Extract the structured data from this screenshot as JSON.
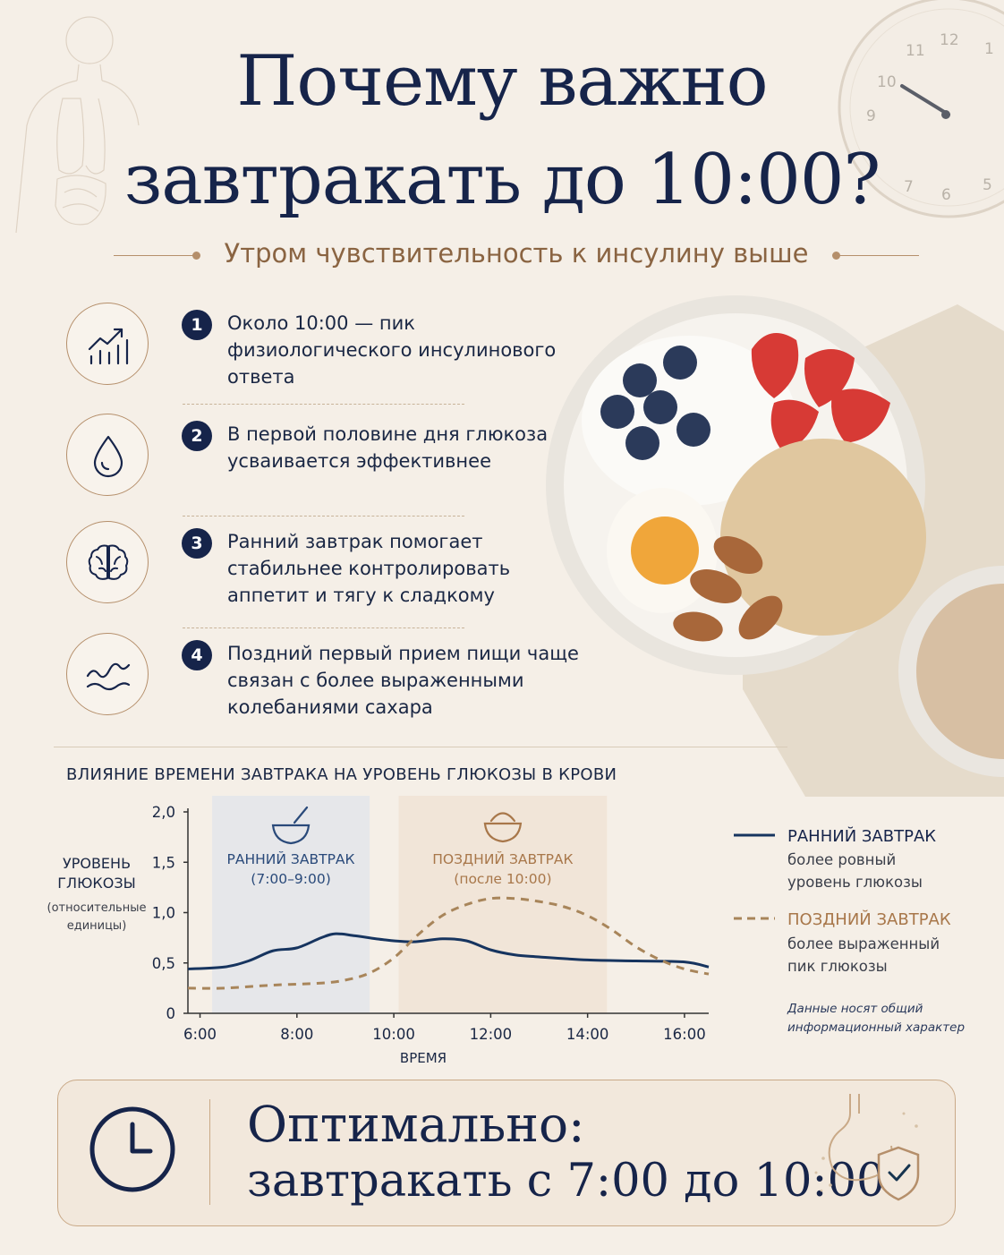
{
  "header": {
    "title_line1": "Почему важно",
    "title_line2": "завтракать до 10:00?",
    "subtitle": "Утром чувствительность к инсулину выше"
  },
  "benefits": [
    {
      "number": "1",
      "icon": "trending-up-icon",
      "text": "Около 10:00 — пик физиологического инсулинового ответа"
    },
    {
      "number": "2",
      "icon": "drop-icon",
      "text": "В первой половине дня глюкоза усваивается эффективнее"
    },
    {
      "number": "3",
      "icon": "brain-icon",
      "text": "Ранний завтрак помогает стабильнее контролировать аппетит и тягу к сладкому"
    },
    {
      "number": "4",
      "icon": "wave-icon",
      "text": "Поздний первый прием пищи чаще связан с более выраженными колебаниями сахара"
    }
  ],
  "clock": {
    "numbers": [
      "11",
      "12",
      "1",
      "10",
      "9",
      "6",
      "5",
      "7"
    ]
  },
  "chart_data": {
    "type": "line",
    "title": "ВЛИЯНИЕ ВРЕМЕНИ ЗАВТРАКА НА УРОВЕНЬ ГЛЮКОЗЫ В КРОВИ",
    "ylabel_line1": "УРОВЕНЬ",
    "ylabel_line2": "ГЛЮКОЗЫ",
    "ylabel_note_line1": "(относительные",
    "ylabel_note_line2": "единицы)",
    "xlabel": "ВРЕМЯ",
    "xlim": [
      5.75,
      16.5
    ],
    "ylim": [
      0,
      2.0
    ],
    "x_ticks": [
      6,
      8,
      10,
      12,
      14,
      16
    ],
    "x_tick_labels": [
      "6:00",
      "8:00",
      "10:00",
      "12:00",
      "14:00",
      "16:00"
    ],
    "y_ticks": [
      0,
      0.5,
      1.0,
      1.5,
      2.0
    ],
    "y_tick_labels": [
      "0",
      "0,5",
      "1,0",
      "1,5",
      "2,0"
    ],
    "bands": [
      {
        "name": "early",
        "from": 6.25,
        "to": 9.5,
        "label": "РАННИЙ ЗАВТРАК",
        "sublabel": "(7:00–9:00)",
        "color": "#e6e7ea",
        "icon": "bowl-icon"
      },
      {
        "name": "late",
        "from": 10.1,
        "to": 14.4,
        "label": "ПОЗДНИЙ ЗАВТРАК",
        "sublabel": "(после 10:00)",
        "color": "#f1e5d8",
        "icon": "dish-icon"
      }
    ],
    "series": [
      {
        "name": "РАННИЙ ЗАВТРАК",
        "style": "solid",
        "color": "#16345f",
        "description": "более ровный уровень глюкозы",
        "x": [
          5.75,
          6.5,
          7.0,
          7.5,
          8.0,
          8.5,
          8.8,
          9.2,
          9.8,
          10.4,
          11.0,
          11.5,
          12.0,
          12.5,
          13.0,
          14.0,
          15.0,
          16.0,
          16.5
        ],
        "y": [
          0.44,
          0.46,
          0.52,
          0.62,
          0.65,
          0.75,
          0.79,
          0.77,
          0.73,
          0.71,
          0.74,
          0.72,
          0.63,
          0.58,
          0.56,
          0.53,
          0.52,
          0.51,
          0.46
        ]
      },
      {
        "name": "ПОЗДНИЙ ЗАВТРАК",
        "style": "dashed",
        "color": "#a8855a",
        "description": "более выраженный пик глюкозы",
        "x": [
          5.75,
          6.5,
          7.5,
          8.5,
          9.0,
          9.5,
          10.0,
          10.5,
          11.0,
          11.5,
          12.0,
          12.5,
          13.0,
          13.5,
          14.0,
          14.5,
          15.0,
          15.5,
          16.0,
          16.5
        ],
        "y": [
          0.25,
          0.25,
          0.28,
          0.3,
          0.33,
          0.4,
          0.55,
          0.78,
          0.97,
          1.08,
          1.14,
          1.14,
          1.11,
          1.06,
          0.97,
          0.83,
          0.66,
          0.53,
          0.44,
          0.39
        ]
      }
    ],
    "grid": false
  },
  "legend": {
    "early_title": "РАННИЙ ЗАВТРАК",
    "early_desc_line1": "более ровный",
    "early_desc_line2": "уровень глюкозы",
    "late_title": "ПОЗДНИЙ ЗАВТРАК",
    "late_desc_line1": "более выраженный",
    "late_desc_line2": "пик глюкозы"
  },
  "note": {
    "line1": "Данные носят общий",
    "line2": "информационный характер"
  },
  "optimal": {
    "line1": "Оптимально:",
    "line2": "завтракать с 7:00 до 10:00",
    "icon": "clock-icon",
    "badge_icon": "stomach-shield-icon"
  },
  "colors": {
    "navy": "#16244a",
    "accent": "#b58f6b",
    "background": "#f5efe7"
  }
}
